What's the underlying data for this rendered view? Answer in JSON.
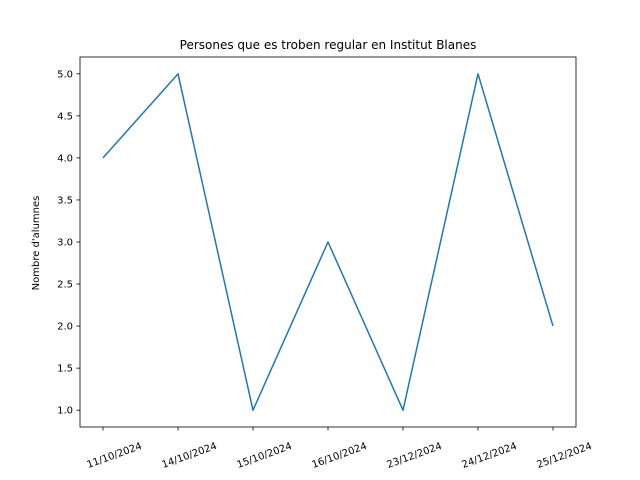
{
  "chart_data": {
    "type": "line",
    "title": "Persones que es troben regular en Institut Blanes",
    "xlabel": "",
    "ylabel": "Nombre d'alumnes",
    "categories": [
      "11/10/2024",
      "14/10/2024",
      "15/10/2024",
      "16/10/2024",
      "23/12/2024",
      "24/12/2024",
      "25/12/2024"
    ],
    "series": [
      {
        "values": [
          4,
          5,
          1,
          3,
          1,
          5,
          2
        ],
        "color": "#1f77b4"
      }
    ],
    "ylim": [
      0.8,
      5.2
    ],
    "yticks": [
      "1.0",
      "1.5",
      "2.0",
      "2.5",
      "3.0",
      "3.5",
      "4.0",
      "4.5",
      "5.0"
    ],
    "grid": false,
    "legend": "none"
  }
}
